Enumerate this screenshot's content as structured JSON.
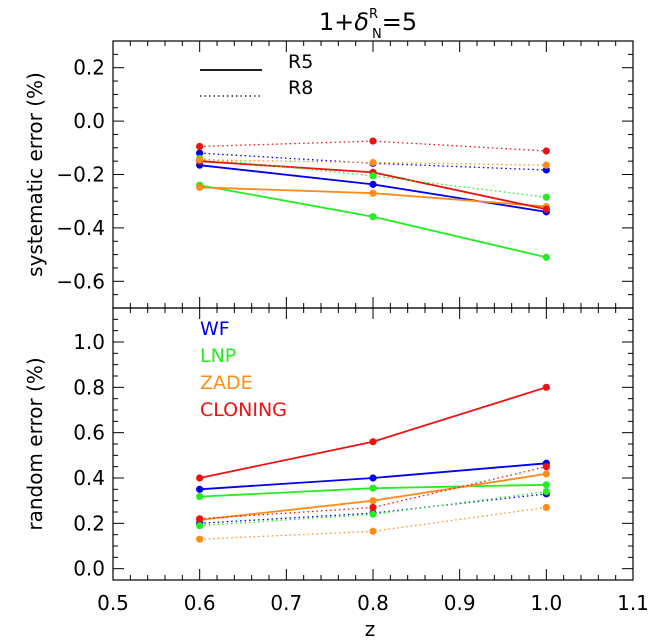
{
  "chart_data": {
    "title": {
      "prefix": "1+",
      "symbol": "δ",
      "superscript": "R",
      "subscript": "N",
      "suffix": "=5"
    },
    "xlabel": "z",
    "xlim": [
      0.5,
      1.1
    ],
    "xticks": [
      0.5,
      0.6,
      0.7,
      0.8,
      0.9,
      1.0,
      1.1
    ],
    "xtick_labels": [
      "0.5",
      "0.6",
      "0.7",
      "0.8",
      "0.9",
      "1.0",
      "1.1"
    ],
    "style_legend": [
      {
        "label": "R5",
        "dash": "solid"
      },
      {
        "label": "R8",
        "dash": "dotted"
      }
    ],
    "color_legend": [
      {
        "label": "WF",
        "color": "#0000ee"
      },
      {
        "label": "LNP",
        "color": "#22ee22"
      },
      {
        "label": "ZADE",
        "color": "#ff8c1a"
      },
      {
        "label": "CLONING",
        "color": "#ee1111"
      }
    ],
    "panels": [
      {
        "type": "line",
        "ylabel": "systematic error  (%)",
        "ylim": [
          -0.7,
          0.3
        ],
        "yticks": [
          0.2,
          0.0,
          -0.2,
          -0.4,
          -0.6
        ],
        "ytick_labels": [
          "0.2",
          "0.0",
          "−0.2",
          "−0.4",
          "−0.6"
        ],
        "x": [
          0.6,
          0.8,
          1.0
        ],
        "series": [
          {
            "name": "WF",
            "run": "R5",
            "values": [
              -0.165,
              -0.237,
              -0.34
            ]
          },
          {
            "name": "LNP",
            "run": "R5",
            "values": [
              -0.24,
              -0.358,
              -0.51
            ]
          },
          {
            "name": "ZADE",
            "run": "R5",
            "values": [
              -0.248,
              -0.27,
              -0.32
            ]
          },
          {
            "name": "CLONING",
            "run": "R5",
            "values": [
              -0.15,
              -0.192,
              -0.33
            ]
          },
          {
            "name": "WF",
            "run": "R8",
            "values": [
              -0.12,
              -0.158,
              -0.183
            ]
          },
          {
            "name": "LNP",
            "run": "R8",
            "values": [
              -0.14,
              -0.205,
              -0.285
            ]
          },
          {
            "name": "ZADE",
            "run": "R8",
            "values": [
              -0.145,
              -0.155,
              -0.165
            ]
          },
          {
            "name": "CLONING",
            "run": "R8",
            "values": [
              -0.095,
              -0.075,
              -0.112
            ]
          }
        ]
      },
      {
        "type": "line",
        "ylabel": "random error  (%)",
        "ylim": [
          -0.05,
          1.15
        ],
        "yticks": [
          0.0,
          0.2,
          0.4,
          0.6,
          0.8,
          1.0
        ],
        "ytick_labels": [
          "0.0",
          "0.2",
          "0.4",
          "0.6",
          "0.8",
          "1.0"
        ],
        "x": [
          0.6,
          0.8,
          1.0
        ],
        "series": [
          {
            "name": "WF",
            "run": "R5",
            "values": [
              0.35,
              0.4,
              0.465
            ]
          },
          {
            "name": "LNP",
            "run": "R5",
            "values": [
              0.318,
              0.355,
              0.37
            ]
          },
          {
            "name": "ZADE",
            "run": "R5",
            "values": [
              0.215,
              0.3,
              0.418
            ]
          },
          {
            "name": "CLONING",
            "run": "R5",
            "values": [
              0.4,
              0.56,
              0.8
            ]
          },
          {
            "name": "WF",
            "run": "R8",
            "values": [
              0.2,
              0.245,
              0.33
            ]
          },
          {
            "name": "LNP",
            "run": "R8",
            "values": [
              0.19,
              0.24,
              0.34
            ]
          },
          {
            "name": "ZADE",
            "run": "R8",
            "values": [
              0.13,
              0.165,
              0.27
            ]
          },
          {
            "name": "CLONING",
            "run": "R8",
            "values": [
              0.22,
              0.27,
              0.45
            ]
          }
        ]
      }
    ]
  }
}
